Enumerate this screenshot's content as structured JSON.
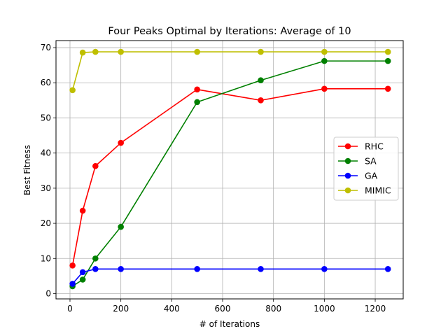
{
  "chart_data": {
    "type": "line",
    "title": "Four Peaks Optimal by Iterations: Average of 10",
    "xlabel": "# of Iterations",
    "ylabel": "Best Fitness",
    "xlim": [
      -55,
      1310
    ],
    "ylim": [
      -1.5,
      72
    ],
    "xticks": [
      0,
      200,
      400,
      600,
      800,
      1000,
      1200
    ],
    "yticks": [
      0,
      10,
      20,
      30,
      40,
      50,
      60,
      70
    ],
    "grid": true,
    "legend_position": "center-right",
    "x": [
      10,
      50,
      100,
      200,
      500,
      750,
      1000,
      1250
    ],
    "series": [
      {
        "name": "RHC",
        "color": "#ff0000",
        "values": [
          8,
          23.6,
          36.3,
          42.9,
          58.1,
          55,
          58.3,
          58.3
        ]
      },
      {
        "name": "SA",
        "color": "#008000",
        "values": [
          2.1,
          4,
          10,
          19,
          54.5,
          60.7,
          66.2,
          66.2
        ]
      },
      {
        "name": "GA",
        "color": "#0000ff",
        "values": [
          2.8,
          6.1,
          7,
          7,
          7,
          7,
          7,
          7
        ]
      },
      {
        "name": "MIMIC",
        "color": "#bfbf00",
        "values": [
          57.9,
          68.6,
          68.8,
          68.8,
          68.8,
          68.8,
          68.8,
          68.8
        ]
      }
    ]
  }
}
